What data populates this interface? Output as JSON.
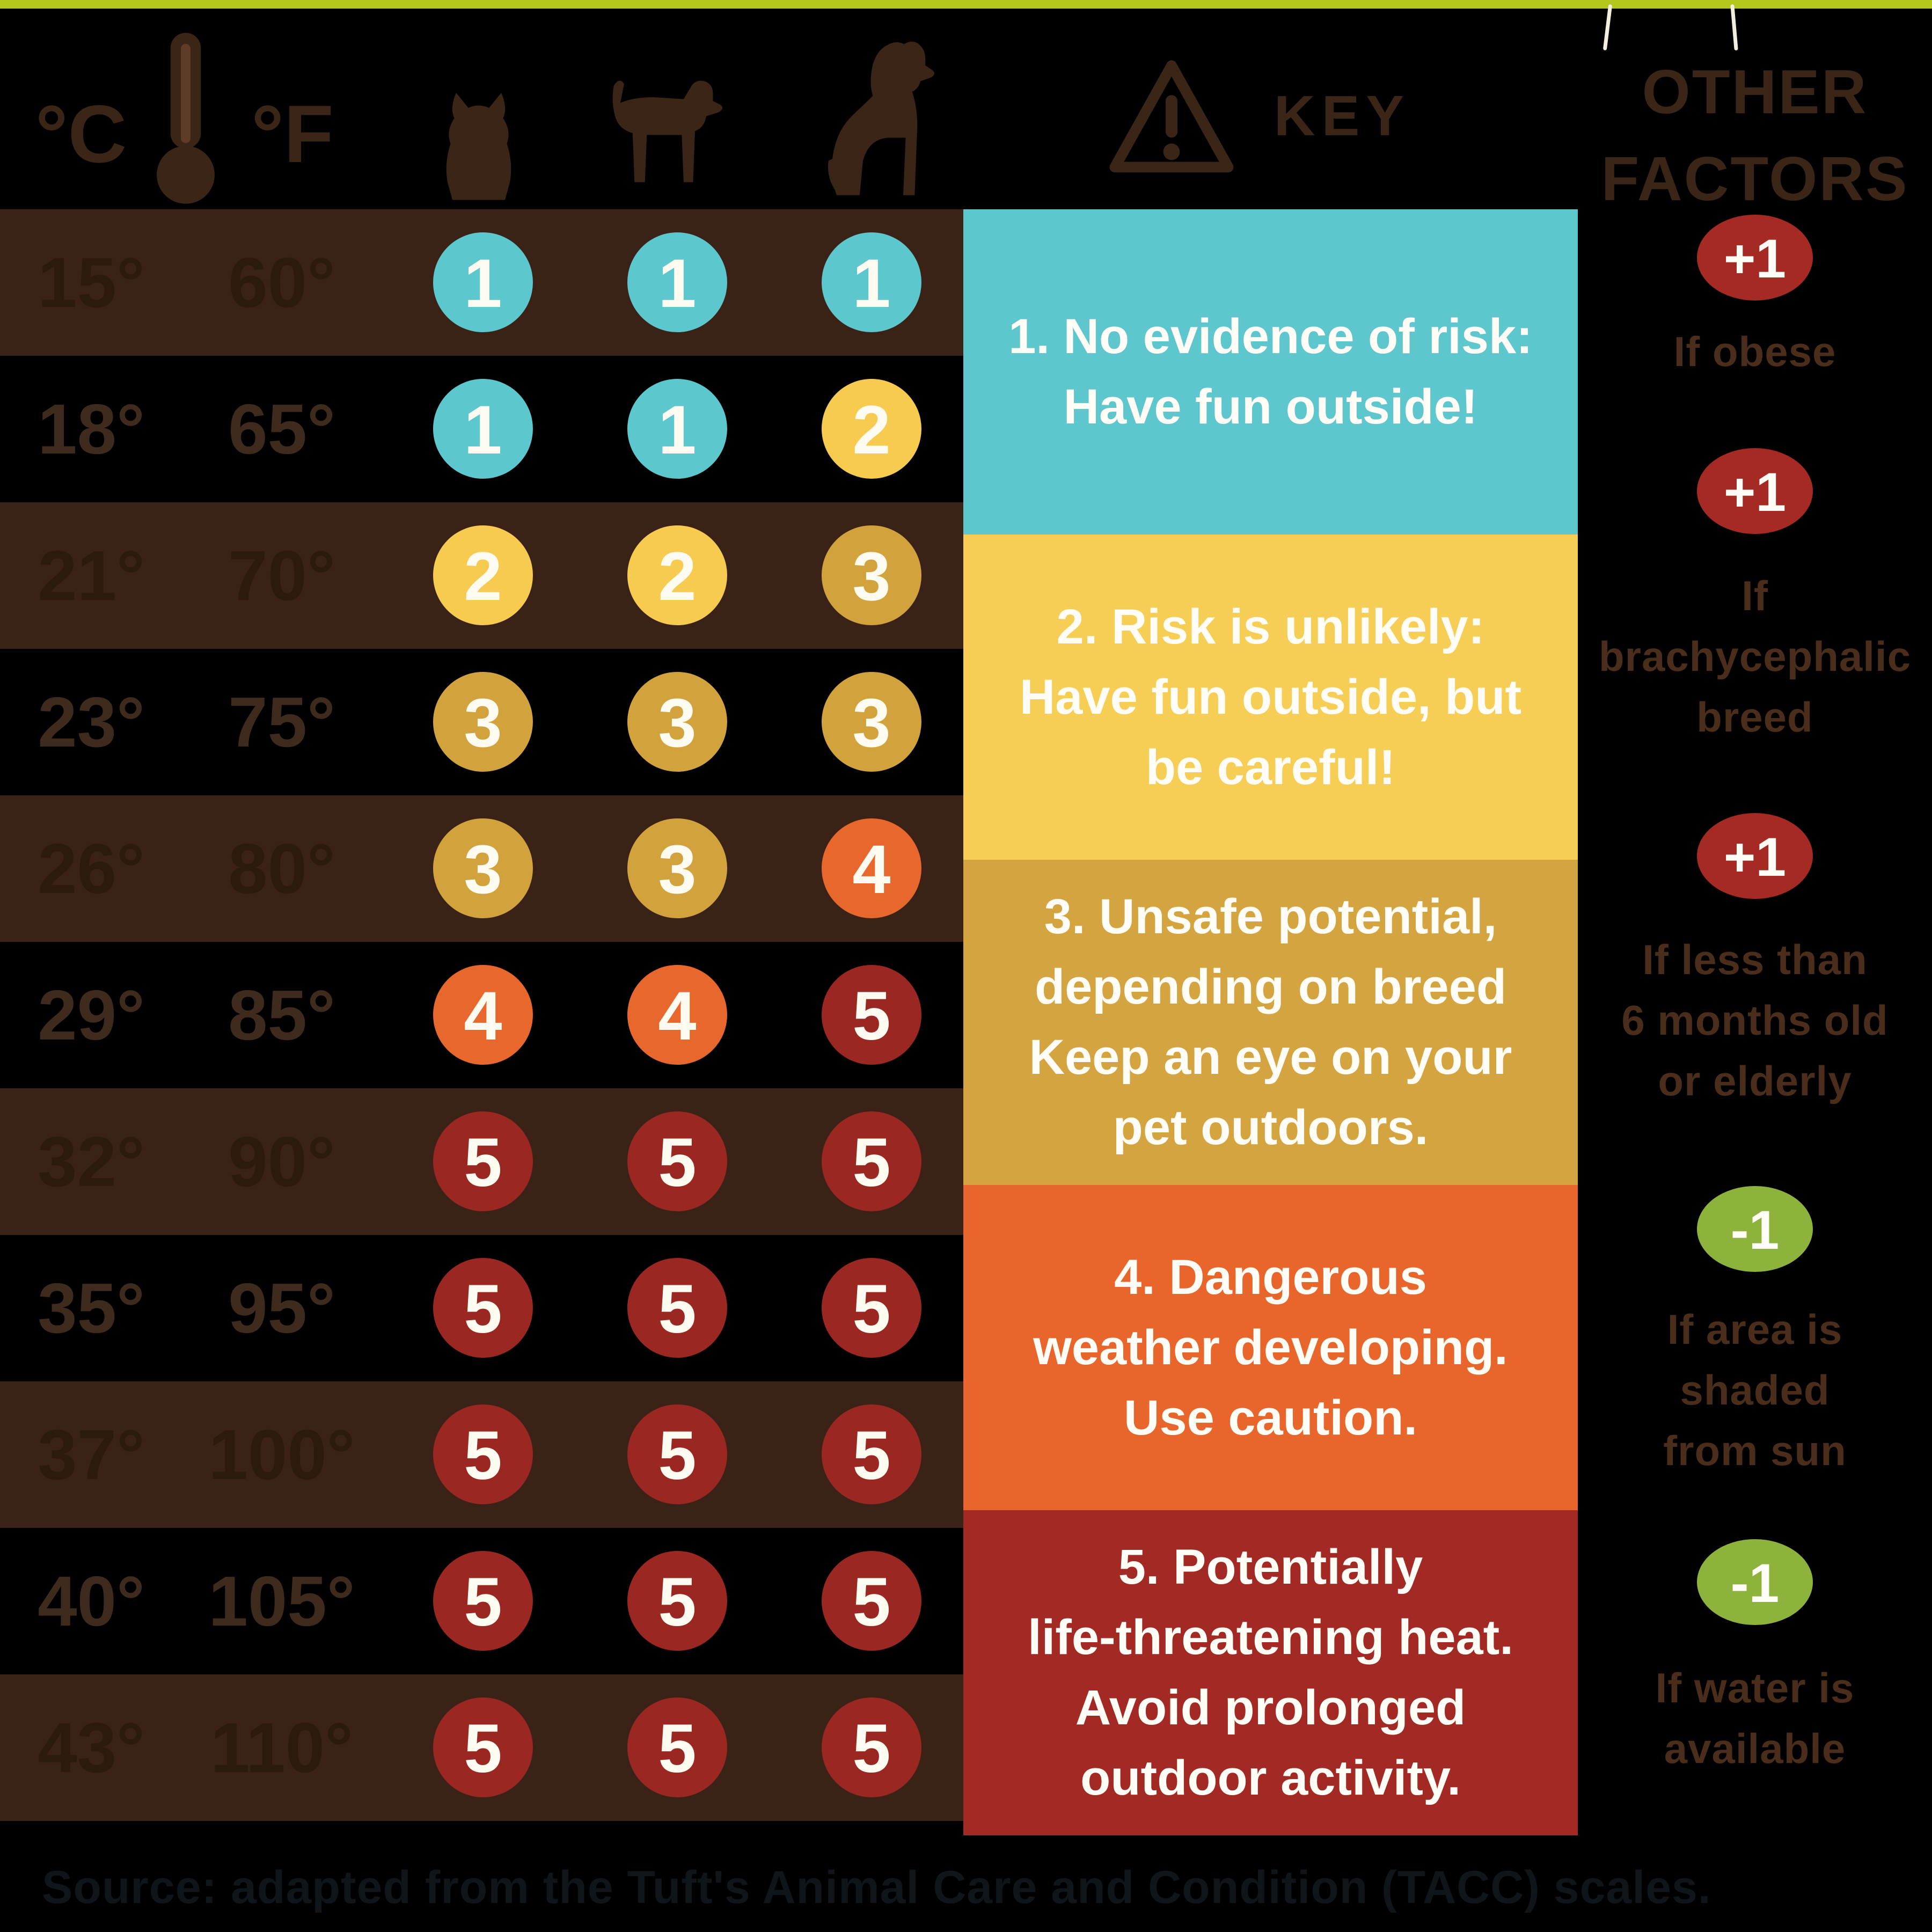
{
  "colors": {
    "top_bar": "#b3c71d",
    "thread": "#f3eede",
    "row_brown": "#3a2316",
    "row_black": "#000000",
    "header_brown": "#3b2517",
    "temp_text_on_black": "#3f2b1d",
    "temp_text_on_brown": "#2c1a0e",
    "circle_text": "#fdfaf0",
    "level_colors": {
      "1": "#5cc7cd",
      "2": "#f6cb50",
      "3": "#d2a33c",
      "4": "#e8672c",
      "5": "#9b2722"
    },
    "plus_badge": "#a42a23",
    "minus_badge": "#8db33d",
    "factor_text": "#4a2d1b",
    "key_text": "#fffdf6",
    "source_text": "#10151a"
  },
  "header": {
    "celsius": "°C",
    "fahrenheit": "°F",
    "key_label": "KEY",
    "other_factors_lines": [
      "OTHER",
      "FACTORS"
    ],
    "icons": [
      "thermometer-icon",
      "small-dog-icon",
      "medium-dog-icon",
      "large-dog-icon",
      "warning-triangle-icon"
    ]
  },
  "table": {
    "columns": [
      "small-dog",
      "medium-dog",
      "large-dog"
    ],
    "rows": [
      {
        "celsius": "15°",
        "fahrenheit": "60°",
        "shade": "brown",
        "levels": [
          1,
          1,
          1
        ]
      },
      {
        "celsius": "18°",
        "fahrenheit": "65°",
        "shade": "black",
        "levels": [
          1,
          1,
          2
        ]
      },
      {
        "celsius": "21°",
        "fahrenheit": "70°",
        "shade": "brown",
        "levels": [
          2,
          2,
          3
        ]
      },
      {
        "celsius": "23°",
        "fahrenheit": "75°",
        "shade": "black",
        "levels": [
          3,
          3,
          3
        ]
      },
      {
        "celsius": "26°",
        "fahrenheit": "80°",
        "shade": "brown",
        "levels": [
          3,
          3,
          4
        ]
      },
      {
        "celsius": "29°",
        "fahrenheit": "85°",
        "shade": "black",
        "levels": [
          4,
          4,
          5
        ]
      },
      {
        "celsius": "32°",
        "fahrenheit": "90°",
        "shade": "brown",
        "levels": [
          5,
          5,
          5
        ]
      },
      {
        "celsius": "35°",
        "fahrenheit": "95°",
        "shade": "black",
        "levels": [
          5,
          5,
          5
        ]
      },
      {
        "celsius": "37°",
        "fahrenheit": "100°",
        "shade": "brown",
        "levels": [
          5,
          5,
          5
        ]
      },
      {
        "celsius": "40°",
        "fahrenheit": "105°",
        "shade": "black",
        "levels": [
          5,
          5,
          5
        ]
      },
      {
        "celsius": "43°",
        "fahrenheit": "110°",
        "shade": "brown",
        "levels": [
          5,
          5,
          5
        ]
      }
    ]
  },
  "key_panel": {
    "sections": [
      {
        "level": 1,
        "color": "#5ec7cd",
        "lines": [
          "1. No evidence of risk:",
          "Have fun outside!"
        ]
      },
      {
        "level": 2,
        "color": "#f6ce55",
        "lines": [
          "2. Risk is unlikely:",
          "Have fun outside, but",
          "be careful!"
        ]
      },
      {
        "level": 3,
        "color": "#d4a440",
        "lines": [
          "3. Unsafe potential,",
          "depending on breed",
          "Keep an eye on your",
          "pet outdoors."
        ]
      },
      {
        "level": 4,
        "color": "#e8662c",
        "lines": [
          "4. Dangerous",
          "weather developing.",
          "Use caution."
        ]
      },
      {
        "level": 5,
        "color": "#a32a24",
        "lines": [
          "5. Potentially",
          "life-threatening heat.",
          "Avoid prolonged",
          "outdoor activity."
        ]
      }
    ]
  },
  "other_factors": {
    "items": [
      {
        "badge": "+1",
        "type": "plus",
        "lines": [
          "If obese"
        ]
      },
      {
        "badge": "+1",
        "type": "plus",
        "lines": [
          "If",
          "brachycephalic",
          "breed"
        ]
      },
      {
        "badge": "+1",
        "type": "plus",
        "lines": [
          "If less than",
          "6 months old",
          "or elderly"
        ]
      },
      {
        "badge": "-1",
        "type": "minus",
        "lines": [
          "If area is",
          "shaded",
          "from sun"
        ]
      },
      {
        "badge": "-1",
        "type": "minus",
        "lines": [
          "If water is",
          "available"
        ]
      }
    ]
  },
  "source": "Source: adapted from the Tuft's Animal Care and Condition (TACC) scales.",
  "chart_data": {
    "type": "heatmap",
    "title": "Heat risk levels for dogs by outdoor temperature and dog size",
    "categories": [
      "small dog",
      "medium dog",
      "large dog"
    ],
    "rows_celsius": [
      15,
      18,
      21,
      23,
      26,
      29,
      32,
      35,
      37,
      40,
      43
    ],
    "rows_fahrenheit": [
      60,
      65,
      70,
      75,
      80,
      85,
      90,
      95,
      100,
      105,
      110
    ],
    "values": [
      [
        1,
        1,
        1
      ],
      [
        1,
        1,
        2
      ],
      [
        2,
        2,
        3
      ],
      [
        3,
        3,
        3
      ],
      [
        3,
        3,
        4
      ],
      [
        4,
        4,
        5
      ],
      [
        5,
        5,
        5
      ],
      [
        5,
        5,
        5
      ],
      [
        5,
        5,
        5
      ],
      [
        5,
        5,
        5
      ],
      [
        5,
        5,
        5
      ]
    ],
    "value_scale": [
      1,
      5
    ],
    "legend": [
      "1. No evidence of risk: Have fun outside!",
      "2. Risk is unlikely: Have fun outside, but be careful!",
      "3. Unsafe potential, depending on breed Keep an eye on your pet outdoors.",
      "4. Dangerous weather developing. Use caution.",
      "5. Potentially life-threatening heat. Avoid prolonged outdoor activity."
    ],
    "legend_position": "right",
    "modifiers": [
      {
        "value": "+1",
        "condition": "If obese"
      },
      {
        "value": "+1",
        "condition": "If brachycephalic breed"
      },
      {
        "value": "+1",
        "condition": "If less than 6 months old or elderly"
      },
      {
        "value": "-1",
        "condition": "If area is shaded from sun"
      },
      {
        "value": "-1",
        "condition": "If water is available"
      }
    ]
  }
}
